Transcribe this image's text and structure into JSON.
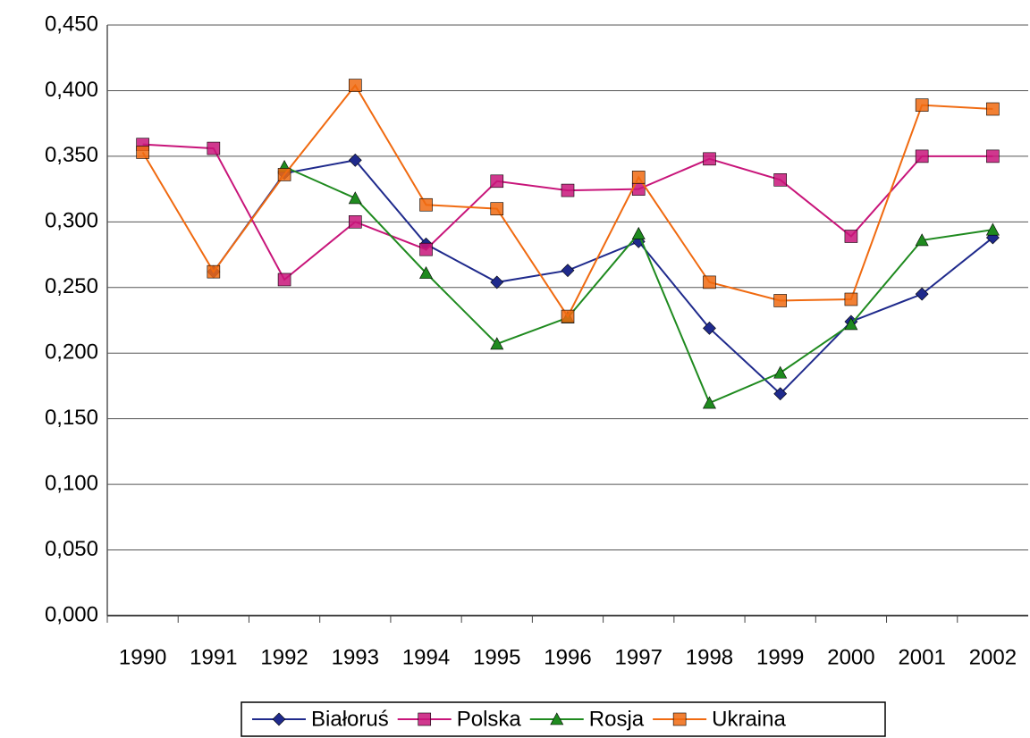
{
  "chart_data": {
    "type": "line",
    "categories": [
      "1990",
      "1991",
      "1992",
      "1993",
      "1994",
      "1995",
      "1996",
      "1997",
      "1998",
      "1999",
      "2000",
      "2001",
      "2002"
    ],
    "series": [
      {
        "name": "Białoruś",
        "color": "#1f2a8c",
        "marker": "diamond",
        "values": [
          null,
          0.262,
          0.337,
          0.347,
          0.283,
          0.254,
          0.263,
          0.285,
          0.219,
          0.169,
          0.224,
          0.245,
          0.288
        ]
      },
      {
        "name": "Polska",
        "color": "#c8157a",
        "marker": "square",
        "values": [
          0.359,
          0.356,
          0.256,
          0.3,
          0.279,
          0.331,
          0.324,
          0.325,
          0.348,
          0.332,
          0.289,
          0.35,
          0.35
        ]
      },
      {
        "name": "Rosja",
        "color": "#1f8a1f",
        "marker": "triangle",
        "values": [
          null,
          null,
          0.342,
          0.318,
          0.261,
          0.207,
          0.227,
          0.291,
          0.162,
          0.185,
          0.222,
          0.286,
          0.294
        ]
      },
      {
        "name": "Ukraina",
        "color": "#f06a10",
        "marker": "square",
        "values": [
          0.353,
          0.262,
          0.336,
          0.404,
          0.313,
          0.31,
          0.228,
          0.334,
          0.254,
          0.24,
          0.241,
          0.389,
          0.386
        ]
      }
    ],
    "ylim": [
      0,
      0.45
    ],
    "yticks": [
      {
        "value": 0,
        "label": "0,000"
      },
      {
        "value": 0.05,
        "label": "0,050"
      },
      {
        "value": 0.1,
        "label": "0,100"
      },
      {
        "value": 0.15,
        "label": "0,150"
      },
      {
        "value": 0.2,
        "label": "0,200"
      },
      {
        "value": 0.25,
        "label": "0,250"
      },
      {
        "value": 0.3,
        "label": "0,300"
      },
      {
        "value": 0.35,
        "label": "0,350"
      },
      {
        "value": 0.4,
        "label": "0,400"
      },
      {
        "value": 0.45,
        "label": "0,450"
      }
    ],
    "grid": true,
    "legend": "bottom"
  }
}
